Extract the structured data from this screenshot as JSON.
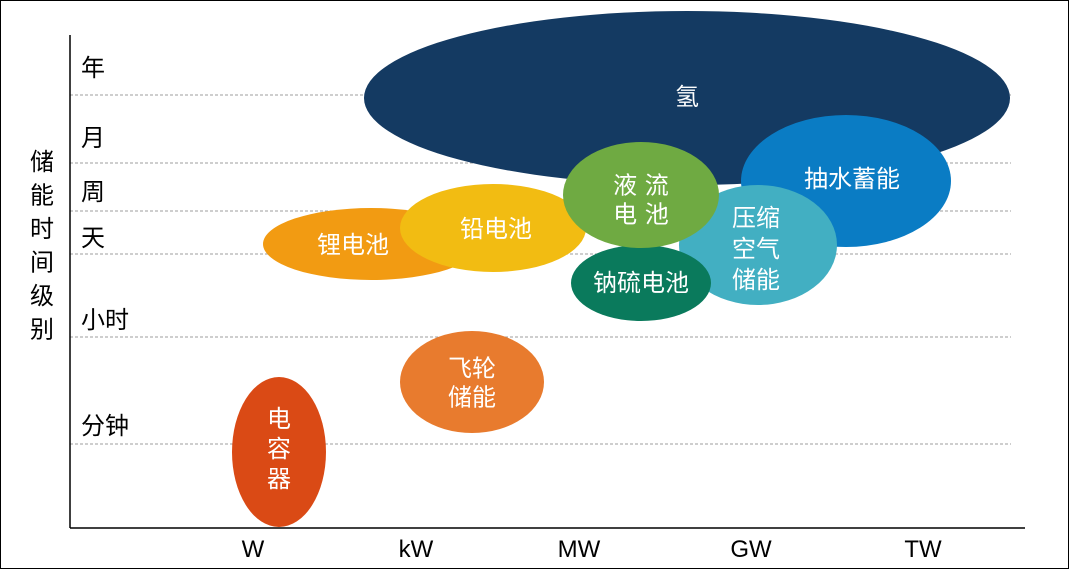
{
  "chart_data": {
    "type": "bubble",
    "title": "",
    "ylabel": "储能时间级别",
    "xlabel": "",
    "x_categories": [
      "W",
      "kW",
      "MW",
      "GW",
      "TW"
    ],
    "y_levels": [
      "分钟",
      "小时",
      "天",
      "周",
      "月",
      "年"
    ],
    "grid": "horizontal dashed",
    "series": [
      {
        "name": "氢",
        "lines": [
          "氢"
        ],
        "x_range": [
          "MW",
          "TW"
        ],
        "y_range": [
          "周",
          "年"
        ],
        "color": "#143A62"
      },
      {
        "name": "抽水蓄能",
        "lines": [
          "抽水蓄能"
        ],
        "x_range": [
          "GW",
          "TW"
        ],
        "y_range": [
          "天",
          "月"
        ],
        "color": "#0A7CC4"
      },
      {
        "name": "锂电池",
        "lines": [
          "锂电池"
        ],
        "x_range": [
          "W",
          "kW"
        ],
        "y_range": [
          "天",
          "天"
        ],
        "color": "#F29B12"
      },
      {
        "name": "压缩空气储能",
        "lines": [
          "压缩",
          "空气",
          "储能"
        ],
        "x_range": [
          "MW",
          "GW"
        ],
        "y_range": [
          "小时",
          "周"
        ],
        "color": "#42AFC2"
      },
      {
        "name": "铅电池",
        "lines": [
          "铅电池"
        ],
        "x_range": [
          "kW",
          "MW"
        ],
        "y_range": [
          "天",
          "周"
        ],
        "color": "#F2BC12"
      },
      {
        "name": "钠硫电池",
        "lines": [
          "钠硫电池"
        ],
        "x_range": [
          "MW",
          "GW"
        ],
        "y_range": [
          "小时",
          "天"
        ],
        "color": "#0A7A5C"
      },
      {
        "name": "液流电池",
        "lines": [
          "液 流",
          "电 池"
        ],
        "x_range": [
          "MW",
          "GW"
        ],
        "y_range": [
          "天",
          "周"
        ],
        "color": "#6FAA42"
      },
      {
        "name": "飞轮储能",
        "lines": [
          "飞轮",
          "储能"
        ],
        "x_range": [
          "kW",
          "MW"
        ],
        "y_range": [
          "分钟",
          "小时"
        ],
        "color": "#E87B2E"
      },
      {
        "name": "电容器",
        "lines": [
          "电",
          "容",
          "器"
        ],
        "x_range": [
          "W",
          "W"
        ],
        "y_range": [
          "分钟",
          "分钟"
        ],
        "color": "#DA4A15"
      }
    ]
  }
}
